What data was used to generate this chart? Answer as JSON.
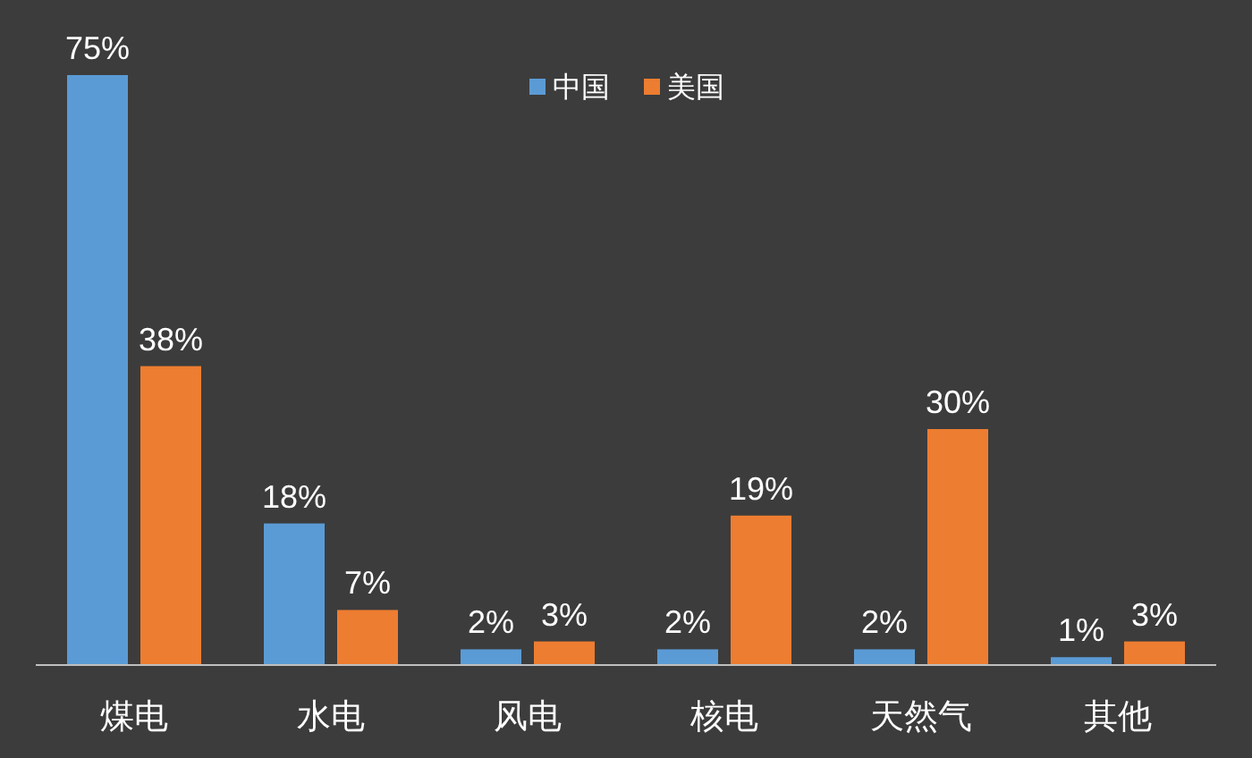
{
  "chart_data": {
    "type": "bar",
    "categories": [
      "煤电",
      "水电",
      "风电",
      "核电",
      "天然气",
      "其他"
    ],
    "series": [
      {
        "name": "中国",
        "color": "#5b9bd5",
        "values": [
          75,
          18,
          2,
          2,
          2,
          1
        ],
        "value_labels": [
          "75%",
          "18%",
          "2%",
          "2%",
          "2%",
          "1%"
        ]
      },
      {
        "name": "美国",
        "color": "#ed7d31",
        "values": [
          38,
          7,
          3,
          19,
          30,
          3
        ],
        "value_labels": [
          "38%",
          "7%",
          "3%",
          "19%",
          "30%",
          "3%"
        ]
      }
    ],
    "legend": "top"
  }
}
